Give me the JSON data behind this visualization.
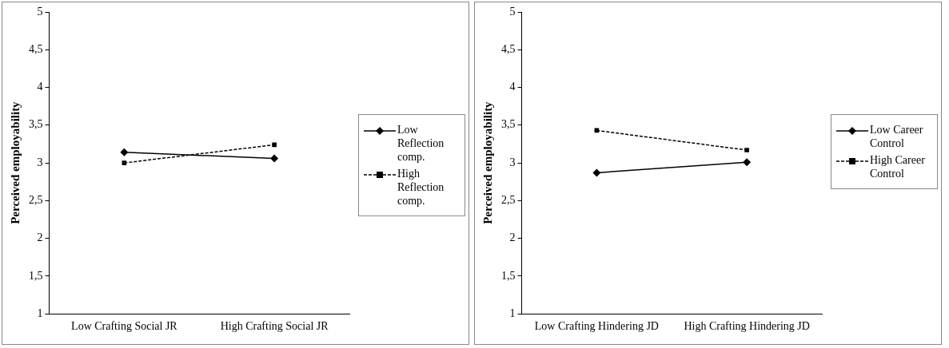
{
  "chart_data": [
    {
      "type": "line",
      "ylabel": "Perceived employability",
      "categories": [
        "Low Crafting Social JR",
        "High Crafting Social JR"
      ],
      "ylim": [
        1,
        5
      ],
      "yticks": [
        1,
        {
          "value": 1.5,
          "label": "1,5"
        },
        2,
        {
          "value": 2.5,
          "label": "2,5"
        },
        3,
        {
          "value": 3.5,
          "label": "3,5"
        },
        4,
        {
          "value": 4.5,
          "label": "4,5"
        },
        5
      ],
      "grid": false,
      "legend": "right",
      "series": [
        {
          "name": "Low Reflection comp.",
          "color": "#000000",
          "values": [
            3.14,
            3.06
          ],
          "marker": "diamond",
          "line_style": "solid"
        },
        {
          "name": "High Reflection comp.",
          "color": "#000000",
          "values": [
            3.0,
            3.24
          ],
          "marker": "square",
          "line_style": "dashed"
        }
      ]
    },
    {
      "type": "line",
      "ylabel": "Perceived employability",
      "categories": [
        "Low Crafting Hindering JD",
        "High Crafting Hindering JD"
      ],
      "ylim": [
        1,
        5
      ],
      "yticks": [
        1,
        {
          "value": 1.5,
          "label": "1,5"
        },
        2,
        {
          "value": 2.5,
          "label": "2,5"
        },
        3,
        {
          "value": 3.5,
          "label": "3,5"
        },
        4,
        {
          "value": 4.5,
          "label": "4,5"
        },
        5
      ],
      "grid": false,
      "legend": "right",
      "series": [
        {
          "name": "Low Career Control",
          "color": "#000000",
          "values": [
            2.87,
            3.01
          ],
          "marker": "diamond",
          "line_style": "solid"
        },
        {
          "name": "High Career Control",
          "color": "#000000",
          "values": [
            3.43,
            3.17
          ],
          "marker": "square",
          "line_style": "dashed"
        }
      ]
    }
  ]
}
